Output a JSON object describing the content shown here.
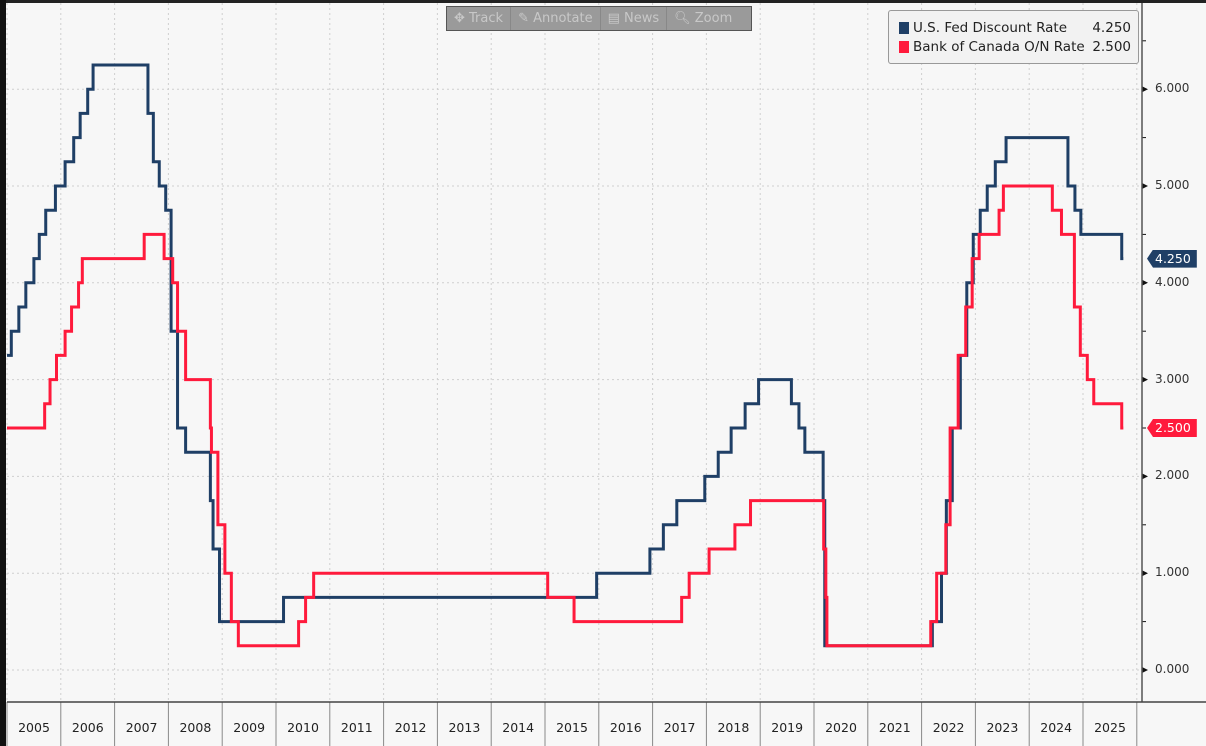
{
  "toolbar": {
    "track": "Track",
    "annotate": "Annotate",
    "news": "News",
    "zoom": "Zoom"
  },
  "colors": {
    "fed": "#1f3f66",
    "boc": "#ff1a3c"
  },
  "chart_data": {
    "type": "line",
    "step": true,
    "title": "",
    "xlabel": "",
    "ylabel": "",
    "xlim": [
      2005,
      2026
    ],
    "ylim": [
      -0.2,
      6.9
    ],
    "y_ticks": [
      "0.000",
      "1.000",
      "2.000",
      "3.000",
      "4.000",
      "5.000",
      "6.000"
    ],
    "y_tick_values": [
      0,
      1,
      2,
      3,
      4,
      5,
      6
    ],
    "x_ticks": [
      "2005",
      "2006",
      "2007",
      "2008",
      "2009",
      "2010",
      "2011",
      "2012",
      "2013",
      "2014",
      "2015",
      "2016",
      "2017",
      "2018",
      "2019",
      "2020",
      "2021",
      "2022",
      "2023",
      "2024",
      "2025"
    ],
    "grid": true,
    "legend_position": "top-right",
    "series": [
      {
        "name": "U.S. Fed Discount Rate",
        "last_value": "4.250",
        "color": "#1f3f66",
        "x": [
          2005,
          2005.08,
          2005.22,
          2005.35,
          2005.5,
          2005.6,
          2005.72,
          2005.9,
          2006.08,
          2006.24,
          2006.36,
          2006.5,
          2006.6,
          2007.62,
          2007.72,
          2007.83,
          2007.95,
          2008.05,
          2008.17,
          2008.32,
          2008.78,
          2008.83,
          2008.95,
          2010.14,
          2015.96,
          2016.95,
          2017.2,
          2017.45,
          2017.97,
          2018.22,
          2018.46,
          2018.72,
          2018.97,
          2019.58,
          2019.72,
          2019.83,
          2020.17,
          2020.2,
          2022.2,
          2022.37,
          2022.46,
          2022.57,
          2022.72,
          2022.84,
          2022.96,
          2023.09,
          2023.22,
          2023.37,
          2023.57,
          2024.72,
          2024.85,
          2024.96,
          2025.72,
          2025.75
        ],
        "y": [
          3.25,
          3.5,
          3.75,
          4.0,
          4.25,
          4.5,
          4.75,
          5.0,
          5.25,
          5.5,
          5.75,
          6.0,
          6.25,
          5.75,
          5.25,
          5.0,
          4.75,
          3.5,
          2.5,
          2.25,
          1.75,
          1.25,
          0.5,
          0.75,
          1.0,
          1.25,
          1.5,
          1.75,
          2.0,
          2.25,
          2.5,
          2.75,
          3.0,
          2.75,
          2.5,
          2.25,
          1.75,
          0.25,
          0.5,
          1.0,
          1.75,
          2.5,
          3.25,
          4.0,
          4.5,
          4.75,
          5.0,
          5.25,
          5.5,
          5.0,
          4.75,
          4.5,
          4.25,
          4.25
        ]
      },
      {
        "name": "Bank of Canada O/N Rate",
        "last_value": "2.500",
        "color": "#ff1a3c",
        "x": [
          2005,
          2005.7,
          2005.8,
          2005.92,
          2006.08,
          2006.2,
          2006.33,
          2006.4,
          2007.55,
          2007.92,
          2008.08,
          2008.17,
          2008.32,
          2008.78,
          2008.8,
          2008.92,
          2009.05,
          2009.17,
          2009.3,
          2010.42,
          2010.55,
          2010.7,
          2015.05,
          2015.54,
          2017.54,
          2017.68,
          2018.05,
          2018.53,
          2018.82,
          2020.18,
          2020.22,
          2020.24,
          2022.17,
          2022.28,
          2022.45,
          2022.53,
          2022.68,
          2022.82,
          2022.94,
          2023.07,
          2023.44,
          2023.52,
          2024.43,
          2024.6,
          2024.84,
          2024.95,
          2025.08,
          2025.2,
          2025.72,
          2025.75
        ],
        "y": [
          2.5,
          2.75,
          3.0,
          3.25,
          3.5,
          3.75,
          4.0,
          4.25,
          4.5,
          4.25,
          4.0,
          3.5,
          3.0,
          2.5,
          2.25,
          1.5,
          1.0,
          0.5,
          0.25,
          0.5,
          0.75,
          1.0,
          0.75,
          0.5,
          0.75,
          1.0,
          1.25,
          1.5,
          1.75,
          1.25,
          0.75,
          0.25,
          0.5,
          1.0,
          1.5,
          2.5,
          3.25,
          3.75,
          4.25,
          4.5,
          4.75,
          5.0,
          4.75,
          4.5,
          3.75,
          3.25,
          3.0,
          2.75,
          2.5,
          2.5
        ]
      }
    ]
  }
}
